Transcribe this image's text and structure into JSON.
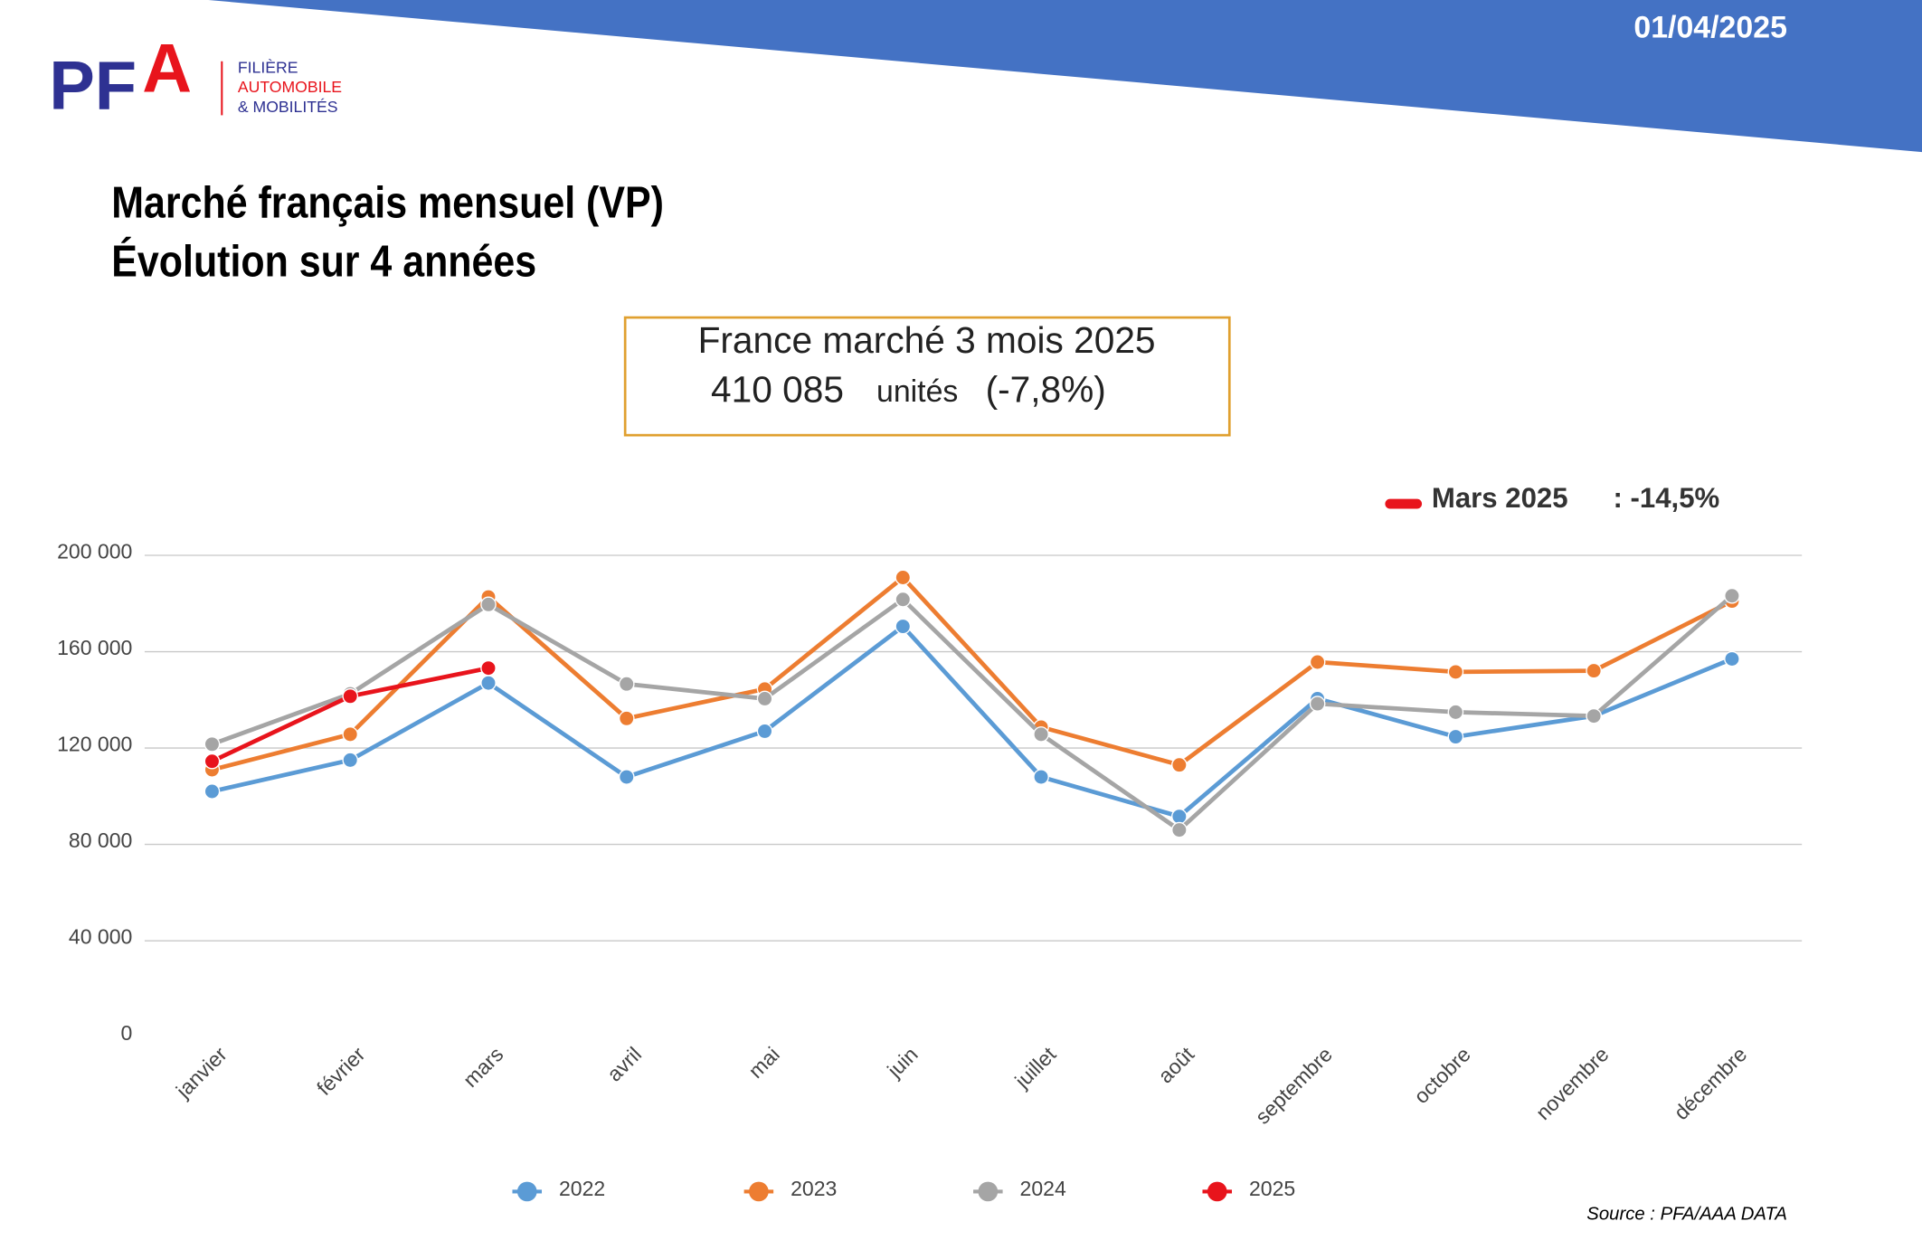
{
  "header": {
    "date": "01/04/2025",
    "logo": {
      "p": "PF",
      "a": "A",
      "line1": "FILIÈRE",
      "line2": "AUTOMOBILE",
      "line3": "& MOBILITÉS"
    }
  },
  "title": {
    "line1": "Marché français mensuel (VP)",
    "line2": "Évolution sur 4 années"
  },
  "summary": {
    "line1": "France marché 3 mois 2025",
    "units_value": "410 085",
    "units_label": "unités",
    "change": "(-7,8%)"
  },
  "chart_data": {
    "type": "line",
    "categories": [
      "janvier",
      "février",
      "mars",
      "avril",
      "mai",
      "juin",
      "juillet",
      "août",
      "septembre",
      "octobre",
      "novembre",
      "décembre"
    ],
    "series": [
      {
        "name": "2022",
        "color": "#5b9bd5",
        "values": [
          102000,
          115000,
          147000,
          108000,
          127000,
          170500,
          108000,
          91600,
          140500,
          124700,
          133300,
          157000
        ]
      },
      {
        "name": "2023",
        "color": "#ed7d31",
        "values": [
          111000,
          125700,
          182700,
          132300,
          144500,
          190800,
          128700,
          113000,
          155700,
          151600,
          152100,
          181000
        ]
      },
      {
        "name": "2024",
        "color": "#a5a5a5",
        "values": [
          121600,
          142500,
          179600,
          146600,
          140500,
          181700,
          125700,
          86000,
          138400,
          134900,
          133300,
          183200
        ]
      },
      {
        "name": "2025",
        "color": "#e8141c",
        "values": [
          114500,
          141500,
          153200,
          null,
          null,
          null,
          null,
          null,
          null,
          null,
          null,
          null
        ]
      }
    ],
    "ylim": [
      0,
      200000
    ],
    "yticks": [
      0,
      {
        "value": 40000,
        "label": "40 000"
      },
      {
        "value": 80000,
        "label": "80 000"
      },
      {
        "value": 120000,
        "label": "120 000"
      },
      {
        "value": 160000,
        "label": "160 000"
      },
      {
        "value": 200000,
        "label": "200 000"
      }
    ],
    "grid": true,
    "annotation": {
      "label": "Mars 2025",
      "value": ": -14,5%"
    },
    "source": "Source : PFA/AAA DATA"
  }
}
